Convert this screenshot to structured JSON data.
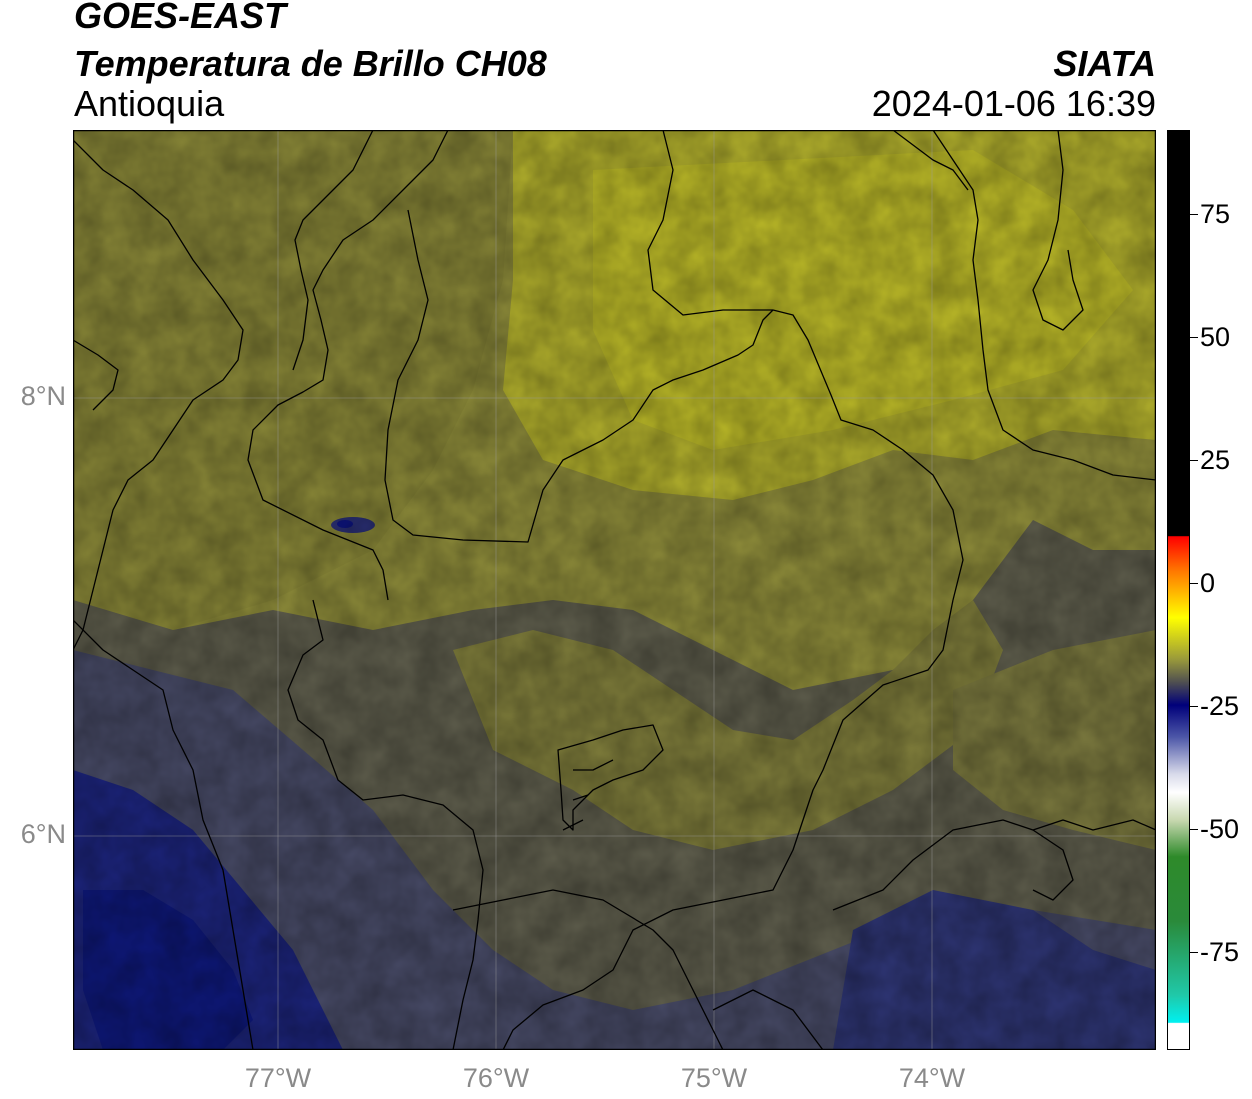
{
  "header": {
    "title": "GOES-EAST",
    "subtitle": "Temperatura de Brillo CH08",
    "region": "Antioquia",
    "organization": "SIATA",
    "datetime": "2024-01-06 16:39"
  },
  "map": {
    "lon_range": [
      -77.94,
      -72.97
    ],
    "lat_range": [
      5.07,
      9.28
    ],
    "lat_ticks": [
      {
        "value": 8,
        "label": "8°N"
      },
      {
        "value": 6,
        "label": "6°N"
      }
    ],
    "lon_ticks": [
      {
        "value": -77,
        "label": "77°W"
      },
      {
        "value": -76,
        "label": "76°W"
      },
      {
        "value": -75,
        "label": "75°W"
      },
      {
        "value": -74,
        "label": "74°W"
      }
    ],
    "colors": {
      "warm_yellow": "#b4b22a",
      "mid_olive": "#8e8c3a",
      "gray": "#5a5a50",
      "blue_gray": "#464a68",
      "deep_blue": "#16207c"
    }
  },
  "colorbar": {
    "range": [
      -95,
      92
    ],
    "ticks": [
      {
        "value": 75,
        "label": "75"
      },
      {
        "value": 50,
        "label": "50"
      },
      {
        "value": 25,
        "label": "25"
      },
      {
        "value": 0,
        "label": "0"
      },
      {
        "value": -25,
        "label": "-25"
      },
      {
        "value": -50,
        "label": "-50"
      },
      {
        "value": -75,
        "label": "-75"
      }
    ]
  }
}
